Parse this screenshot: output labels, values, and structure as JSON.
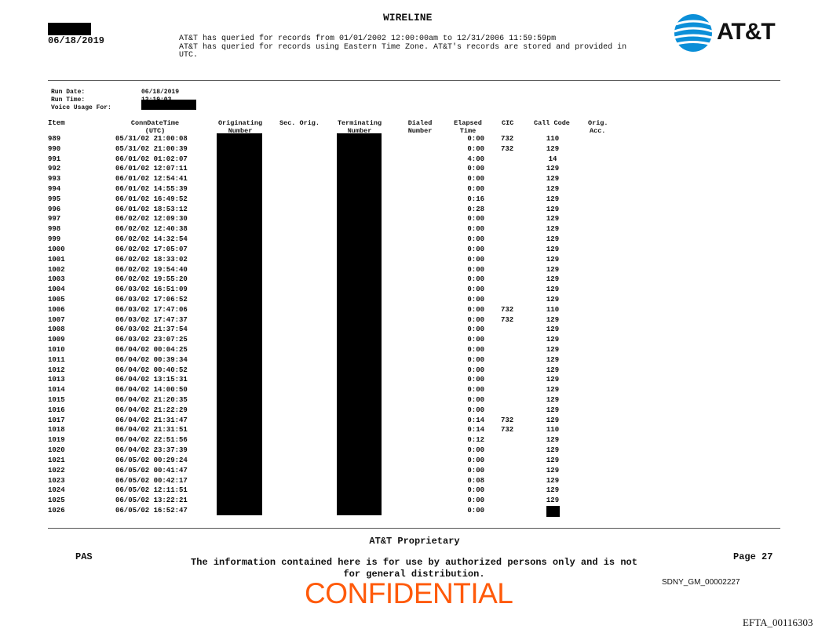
{
  "header": {
    "title": "WIRELINE",
    "date": "06/18/2019",
    "notice_line1": "AT&T has queried for records from 01/01/2002 12:00:00am to 12/31/2006 11:59:59pm",
    "notice_line2": "AT&T has queried for records using Eastern Time Zone. AT&T's records are stored and provided in",
    "notice_line3": "UTC.",
    "logo_text": "AT&T"
  },
  "run_info": {
    "run_date_label": "Run Date:",
    "run_date": "06/18/2019",
    "run_time_label": "Run Time:",
    "run_time": "12:19:03",
    "voice_usage_label": "Voice Usage For:"
  },
  "table": {
    "columns": {
      "item": "Item",
      "conn1": "ConnDateTime",
      "conn2": "(UTC)",
      "orig1": "Originating",
      "orig2": "Number",
      "sec": "Sec. Orig.",
      "term1": "Terminating",
      "term2": "Number",
      "dial1": "Dialed",
      "dial2": "Number",
      "elap1": "Elapsed",
      "elap2": "Time",
      "cic": "CIC",
      "callcode": "Call Code",
      "acc1": "Orig.",
      "acc2": "Acc."
    },
    "rows": [
      [
        "989",
        "05/31/02 21:00:08",
        "0:00",
        "732",
        "110"
      ],
      [
        "990",
        "05/31/02 21:00:39",
        "0:00",
        "732",
        "129"
      ],
      [
        "991",
        "06/01/02 01:02:07",
        "4:00",
        "",
        "14"
      ],
      [
        "992",
        "06/01/02 12:07:11",
        "0:00",
        "",
        "129"
      ],
      [
        "993",
        "06/01/02 12:54:41",
        "0:00",
        "",
        "129"
      ],
      [
        "994",
        "06/01/02 14:55:39",
        "0:00",
        "",
        "129"
      ],
      [
        "995",
        "06/01/02 16:49:52",
        "0:16",
        "",
        "129"
      ],
      [
        "996",
        "06/01/02 18:53:12",
        "0:28",
        "",
        "129"
      ],
      [
        "997",
        "06/02/02 12:09:30",
        "0:00",
        "",
        "129"
      ],
      [
        "998",
        "06/02/02 12:40:38",
        "0:00",
        "",
        "129"
      ],
      [
        "999",
        "06/02/02 14:32:54",
        "0:00",
        "",
        "129"
      ],
      [
        "1000",
        "06/02/02 17:05:07",
        "0:00",
        "",
        "129"
      ],
      [
        "1001",
        "06/02/02 18:33:02",
        "0:00",
        "",
        "129"
      ],
      [
        "1002",
        "06/02/02 19:54:40",
        "0:00",
        "",
        "129"
      ],
      [
        "1003",
        "06/02/02 19:55:20",
        "0:00",
        "",
        "129"
      ],
      [
        "1004",
        "06/03/02 16:51:09",
        "0:00",
        "",
        "129"
      ],
      [
        "1005",
        "06/03/02 17:06:52",
        "0:00",
        "",
        "129"
      ],
      [
        "1006",
        "06/03/02 17:47:06",
        "0:00",
        "732",
        "110"
      ],
      [
        "1007",
        "06/03/02 17:47:37",
        "0:00",
        "732",
        "129"
      ],
      [
        "1008",
        "06/03/02 21:37:54",
        "0:00",
        "",
        "129"
      ],
      [
        "1009",
        "06/03/02 23:07:25",
        "0:00",
        "",
        "129"
      ],
      [
        "1010",
        "06/04/02 00:04:25",
        "0:00",
        "",
        "129"
      ],
      [
        "1011",
        "06/04/02 00:39:34",
        "0:00",
        "",
        "129"
      ],
      [
        "1012",
        "06/04/02 00:40:52",
        "0:00",
        "",
        "129"
      ],
      [
        "1013",
        "06/04/02 13:15:31",
        "0:00",
        "",
        "129"
      ],
      [
        "1014",
        "06/04/02 14:00:50",
        "0:00",
        "",
        "129"
      ],
      [
        "1015",
        "06/04/02 21:20:35",
        "0:00",
        "",
        "129"
      ],
      [
        "1016",
        "06/04/02 21:22:29",
        "0:00",
        "",
        "129"
      ],
      [
        "1017",
        "06/04/02 21:31:47",
        "0:14",
        "732",
        "129"
      ],
      [
        "1018",
        "06/04/02 21:31:51",
        "0:14",
        "732",
        "110"
      ],
      [
        "1019",
        "06/04/02 22:51:56",
        "0:12",
        "",
        "129"
      ],
      [
        "1020",
        "06/04/02 23:37:39",
        "0:00",
        "",
        "129"
      ],
      [
        "1021",
        "06/05/02 00:29:24",
        "0:00",
        "",
        "129"
      ],
      [
        "1022",
        "06/05/02 00:41:47",
        "0:00",
        "",
        "129"
      ],
      [
        "1023",
        "06/05/02 00:42:17",
        "0:08",
        "",
        "129"
      ],
      [
        "1024",
        "06/05/02 12:11:51",
        "0:00",
        "",
        "129"
      ],
      [
        "1025",
        "06/05/02 13:22:21",
        "0:00",
        "",
        "129"
      ],
      [
        "1026",
        "06/05/02 16:52:47",
        "0:00",
        "",
        null
      ]
    ]
  },
  "footer": {
    "proprietary": "AT&T Proprietary",
    "left_code": "PAS",
    "page": "Page 27",
    "disclaimer_line1": "The information contained here is for use by authorized persons only and is not",
    "disclaimer_line2": "for general distribution.",
    "bates_sdny": "SDNY_GM_00002227",
    "confidential": "CONFIDENTIAL",
    "bates_efta": "EFTA_00116303",
    "confidential_color": "#ff5a0a"
  }
}
